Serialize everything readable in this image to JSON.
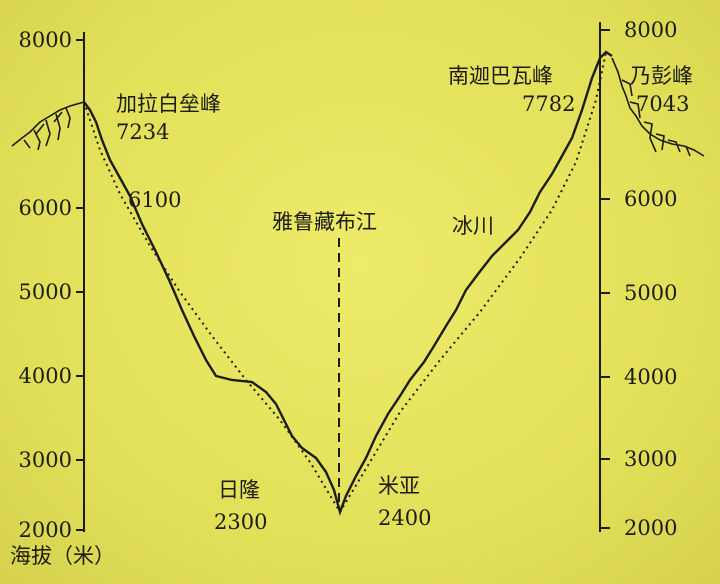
{
  "axis": {
    "unit_label": "海拔（米）",
    "left_ticks": [
      "8000",
      "6000",
      "5000",
      "4000",
      "3000",
      "2000"
    ],
    "right_ticks": [
      "8000",
      "6000",
      "5000",
      "4000",
      "3000",
      "2000"
    ]
  },
  "peaks": {
    "west": {
      "name": "加拉白垒峰",
      "elevation": "7234"
    },
    "east": {
      "name": "南迦巴瓦峰",
      "elevation": "7782"
    },
    "far_east": {
      "name": "乃彭峰",
      "elevation": "7043"
    }
  },
  "points": {
    "west_slope_mark": "6100",
    "river": "雅鲁藏布江",
    "glacier": "冰川",
    "rilong": {
      "name": "日隆",
      "elevation": "2300"
    },
    "miya": {
      "name": "米亚",
      "elevation": "2400"
    }
  },
  "colors": {
    "background": "#e4e25a",
    "ink": "#1c1c1c"
  }
}
